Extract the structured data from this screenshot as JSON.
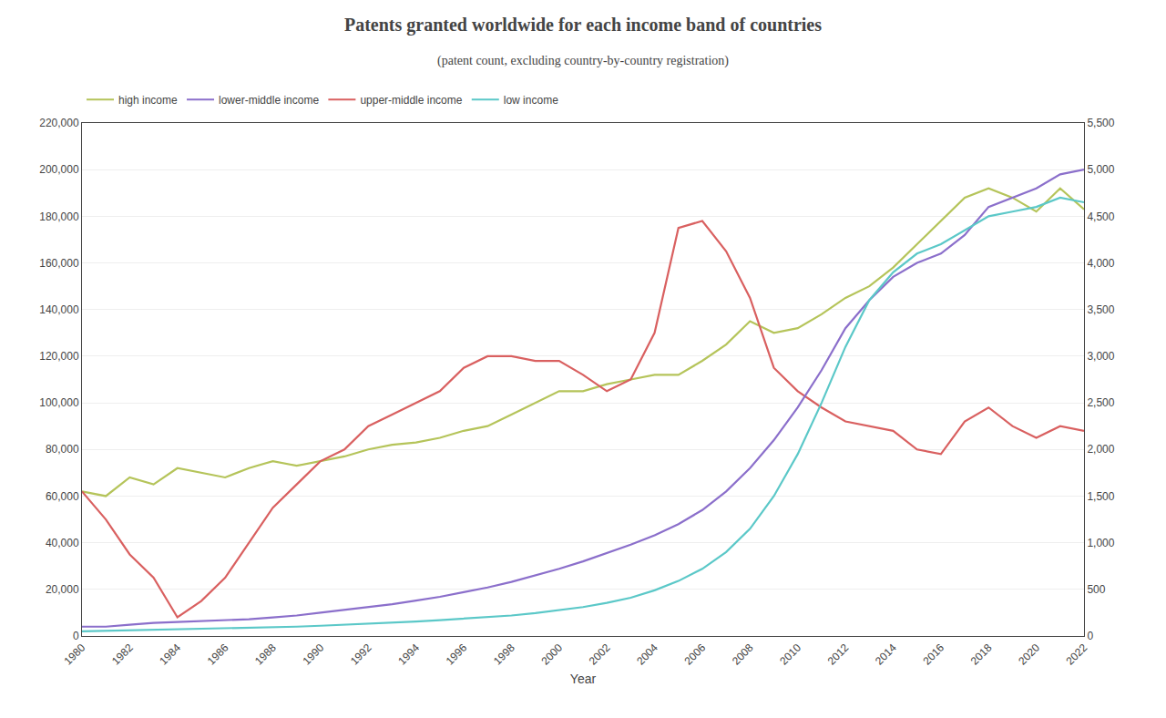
{
  "chart_data": {
    "type": "line",
    "title": "Patents granted worldwide for each income band of countries",
    "subtitle": "(patent count, excluding country-by-country registration)",
    "x_label": "Year",
    "x": [
      1980,
      1981,
      1982,
      1983,
      1984,
      1985,
      1986,
      1987,
      1988,
      1989,
      1990,
      1991,
      1992,
      1993,
      1994,
      1995,
      1996,
      1997,
      1998,
      1999,
      2000,
      2001,
      2002,
      2003,
      2004,
      2005,
      2006,
      2007,
      2008,
      2009,
      2010,
      2011,
      2012,
      2013,
      2014,
      2015,
      2016,
      2017,
      2018,
      2019,
      2020,
      2021,
      2022
    ],
    "series": [
      {
        "name": "high income",
        "color": "#b5c45a",
        "values": [
          62000,
          60000,
          68000,
          65000,
          72000,
          70000,
          68000,
          72000,
          75000,
          73000,
          75000,
          77000,
          80000,
          82000,
          83000,
          85000,
          88000,
          90000,
          95000,
          100000,
          105000,
          105000,
          108000,
          110000,
          112000,
          112000,
          118000,
          125000,
          135000,
          130000,
          132000,
          138000,
          145000,
          150000,
          158000,
          168000,
          178000,
          188000,
          192000,
          188000,
          182000,
          192000,
          183000
        ]
      },
      {
        "name": "lower-middle income",
        "color": "#8b6fcb",
        "axis": "y2",
        "values": [
          100,
          100,
          120,
          140,
          150,
          160,
          170,
          180,
          200,
          220,
          250,
          280,
          310,
          340,
          380,
          420,
          470,
          520,
          580,
          650,
          720,
          800,
          890,
          980,
          1080,
          1200,
          1350,
          1550,
          1800,
          2100,
          2450,
          2850,
          3300,
          3600,
          3850,
          4000,
          4100,
          4300,
          4600,
          4700,
          4800,
          4950,
          5000
        ]
      },
      {
        "name": "upper-middle income",
        "color": "#d96060",
        "values": [
          62000,
          50000,
          35000,
          25000,
          8000,
          15000,
          25000,
          40000,
          55000,
          65000,
          75000,
          80000,
          90000,
          95000,
          100000,
          105000,
          115000,
          120000,
          120000,
          118000,
          118000,
          112000,
          105000,
          110000,
          130000,
          175000,
          178000,
          165000,
          145000,
          115000,
          105000,
          98000,
          92000,
          90000,
          88000,
          80000,
          78000,
          92000,
          98000,
          90000,
          85000,
          90000,
          88000
        ]
      },
      {
        "name": "low income",
        "color": "#5bc8c8",
        "axis": "y2",
        "values": [
          50,
          55,
          60,
          65,
          70,
          75,
          80,
          85,
          90,
          100,
          110,
          120,
          130,
          140,
          155,
          170,
          185,
          200,
          220,
          245,
          275,
          310,
          355,
          410,
          490,
          590,
          720,
          900,
          1150,
          1500,
          1950,
          2500,
          3100,
          3600,
          3900,
          4100,
          4200,
          4350,
          4500,
          4550,
          4600,
          4700,
          4650
        ]
      }
    ],
    "xlim": [
      1980,
      2022
    ],
    "xticks": [
      1980,
      1982,
      1984,
      1986,
      1988,
      1990,
      1992,
      1994,
      1996,
      1998,
      2000,
      2002,
      2004,
      2006,
      2008,
      2010,
      2012,
      2014,
      2016,
      2018,
      2020,
      2022
    ],
    "ylim": [
      0,
      220000
    ],
    "yticks": [
      0,
      {
        "value": 20000,
        "label": "20,000"
      },
      {
        "value": 40000,
        "label": "40,000"
      },
      {
        "value": 60000,
        "label": "60,000"
      },
      {
        "value": 80000,
        "label": "80,000"
      },
      {
        "value": 100000,
        "label": "100,000"
      },
      {
        "value": 120000,
        "label": "120,000"
      },
      {
        "value": 140000,
        "label": "140,000"
      },
      {
        "value": 160000,
        "label": "160,000"
      },
      {
        "value": 180000,
        "label": "180,000"
      },
      {
        "value": 200000,
        "label": "200,000"
      },
      {
        "value": 220000,
        "label": "220,000"
      }
    ],
    "y2lim": [
      0,
      5500
    ],
    "y2ticks": [
      0,
      500,
      {
        "value": 1000,
        "label": "1,000"
      },
      {
        "value": 1500,
        "label": "1,500"
      },
      {
        "value": 2000,
        "label": "2,000"
      },
      {
        "value": 2500,
        "label": "2,500"
      },
      {
        "value": 3000,
        "label": "3,000"
      },
      {
        "value": 3500,
        "label": "3,500"
      },
      {
        "value": 4000,
        "label": "4,000"
      },
      {
        "value": 4500,
        "label": "4,500"
      },
      {
        "value": 5000,
        "label": "5,000"
      },
      {
        "value": 5500,
        "label": "5,500"
      }
    ],
    "grid": "y",
    "legend": "top"
  }
}
